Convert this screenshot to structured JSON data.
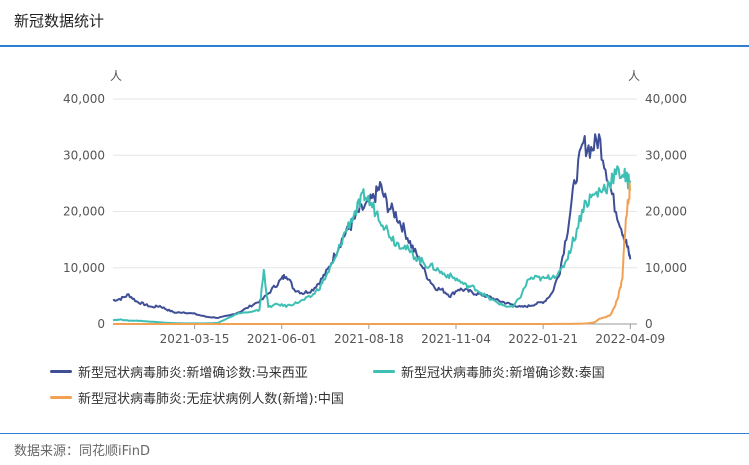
{
  "page": {
    "title": "新冠数据统计",
    "source": "数据来源：同花顺iFinD"
  },
  "chart_data": {
    "type": "line",
    "left_axis": {
      "unit": "人",
      "ticks": [
        "40,000",
        "30,000",
        "20,000",
        "10,000",
        "0"
      ],
      "ylim": [
        0,
        40000
      ]
    },
    "right_axis": {
      "unit": "人",
      "ticks": [
        "40,000",
        "30,000",
        "20,000",
        "10,000",
        "0"
      ],
      "ylim": [
        0,
        40000
      ]
    },
    "x_tick_labels": [
      "2021-03-15",
      "2021-06-01",
      "2021-08-18",
      "2021-11-04",
      "2022-01-21",
      "2022-04-09"
    ],
    "xlim": [
      "2021-01-01",
      "2022-04-15"
    ],
    "grid": true,
    "legend_position": "bottom",
    "series": [
      {
        "name": "新型冠状病毒肺炎:新增确诊数:马来西亚",
        "color": "#3f4f96",
        "points": [
          [
            "2021-01-01",
            4200
          ],
          [
            "2021-01-08",
            4500
          ],
          [
            "2021-01-15",
            5200
          ],
          [
            "2021-01-22",
            4000
          ],
          [
            "2021-01-29",
            3500
          ],
          [
            "2021-02-05",
            3000
          ],
          [
            "2021-02-12",
            3200
          ],
          [
            "2021-02-19",
            2500
          ],
          [
            "2021-02-26",
            2000
          ],
          [
            "2021-03-05",
            2100
          ],
          [
            "2021-03-15",
            1800
          ],
          [
            "2021-03-25",
            1300
          ],
          [
            "2021-04-05",
            1100
          ],
          [
            "2021-04-15",
            1500
          ],
          [
            "2021-04-25",
            2200
          ],
          [
            "2021-05-05",
            3300
          ],
          [
            "2021-05-15",
            4400
          ],
          [
            "2021-05-25",
            6500
          ],
          [
            "2021-06-01",
            8000
          ],
          [
            "2021-06-05",
            8800
          ],
          [
            "2021-06-12",
            6200
          ],
          [
            "2021-06-20",
            5500
          ],
          [
            "2021-06-28",
            6000
          ],
          [
            "2021-07-05",
            7500
          ],
          [
            "2021-07-12",
            9500
          ],
          [
            "2021-07-19",
            12500
          ],
          [
            "2021-07-26",
            15500
          ],
          [
            "2021-08-02",
            17500
          ],
          [
            "2021-08-09",
            20000
          ],
          [
            "2021-08-16",
            21000
          ],
          [
            "2021-08-23",
            22500
          ],
          [
            "2021-08-28",
            24500
          ],
          [
            "2021-09-04",
            21000
          ],
          [
            "2021-09-11",
            19500
          ],
          [
            "2021-09-18",
            17000
          ],
          [
            "2021-09-25",
            14000
          ],
          [
            "2021-10-02",
            11500
          ],
          [
            "2021-10-09",
            8500
          ],
          [
            "2021-10-16",
            6500
          ],
          [
            "2021-10-23",
            6000
          ],
          [
            "2021-10-30",
            5000
          ],
          [
            "2021-11-06",
            6200
          ],
          [
            "2021-11-13",
            6000
          ],
          [
            "2021-11-20",
            5500
          ],
          [
            "2021-11-27",
            5200
          ],
          [
            "2021-12-04",
            4800
          ],
          [
            "2021-12-11",
            4200
          ],
          [
            "2021-12-18",
            3800
          ],
          [
            "2021-12-25",
            3400
          ],
          [
            "2022-01-01",
            3000
          ],
          [
            "2022-01-08",
            3200
          ],
          [
            "2022-01-15",
            3600
          ],
          [
            "2022-01-22",
            4000
          ],
          [
            "2022-01-29",
            5500
          ],
          [
            "2022-02-05",
            9500
          ],
          [
            "2022-02-12",
            17000
          ],
          [
            "2022-02-19",
            26000
          ],
          [
            "2022-02-26",
            32000
          ],
          [
            "2022-03-05",
            31000
          ],
          [
            "2022-03-12",
            33000
          ],
          [
            "2022-03-19",
            27000
          ],
          [
            "2022-03-26",
            21000
          ],
          [
            "2022-04-02",
            16500
          ],
          [
            "2022-04-06",
            14000
          ],
          [
            "2022-04-09",
            11500
          ]
        ]
      },
      {
        "name": "新型冠状病毒肺炎:新增确诊数:泰国",
        "color": "#3ebfb4",
        "points": [
          [
            "2021-01-01",
            700
          ],
          [
            "2021-01-08",
            800
          ],
          [
            "2021-01-15",
            600
          ],
          [
            "2021-01-22",
            600
          ],
          [
            "2021-01-29",
            500
          ],
          [
            "2021-02-05",
            400
          ],
          [
            "2021-02-12",
            300
          ],
          [
            "2021-02-19",
            200
          ],
          [
            "2021-02-26",
            150
          ],
          [
            "2021-03-05",
            100
          ],
          [
            "2021-03-15",
            100
          ],
          [
            "2021-03-25",
            100
          ],
          [
            "2021-04-05",
            200
          ],
          [
            "2021-04-15",
            1200
          ],
          [
            "2021-04-25",
            2000
          ],
          [
            "2021-05-05",
            2100
          ],
          [
            "2021-05-12",
            2500
          ],
          [
            "2021-05-16",
            9500
          ],
          [
            "2021-05-20",
            3000
          ],
          [
            "2021-05-28",
            3500
          ],
          [
            "2021-06-05",
            3200
          ],
          [
            "2021-06-12",
            3600
          ],
          [
            "2021-06-20",
            4200
          ],
          [
            "2021-06-28",
            5000
          ],
          [
            "2021-07-05",
            6500
          ],
          [
            "2021-07-12",
            9000
          ],
          [
            "2021-07-19",
            11500
          ],
          [
            "2021-07-26",
            15500
          ],
          [
            "2021-08-02",
            18500
          ],
          [
            "2021-08-09",
            21000
          ],
          [
            "2021-08-14",
            23000
          ],
          [
            "2021-08-21",
            21000
          ],
          [
            "2021-08-28",
            19000
          ],
          [
            "2021-09-04",
            16500
          ],
          [
            "2021-09-11",
            14500
          ],
          [
            "2021-09-18",
            14000
          ],
          [
            "2021-09-25",
            12500
          ],
          [
            "2021-10-02",
            11500
          ],
          [
            "2021-10-09",
            10500
          ],
          [
            "2021-10-16",
            10000
          ],
          [
            "2021-10-23",
            9000
          ],
          [
            "2021-10-30",
            8500
          ],
          [
            "2021-11-06",
            7800
          ],
          [
            "2021-11-13",
            6800
          ],
          [
            "2021-11-20",
            6500
          ],
          [
            "2021-11-27",
            5500
          ],
          [
            "2021-12-04",
            4500
          ],
          [
            "2021-12-11",
            3800
          ],
          [
            "2021-12-18",
            3200
          ],
          [
            "2021-12-25",
            3000
          ],
          [
            "2022-01-01",
            5000
          ],
          [
            "2022-01-08",
            8000
          ],
          [
            "2022-01-15",
            8200
          ],
          [
            "2022-01-22",
            8000
          ],
          [
            "2022-01-29",
            8500
          ],
          [
            "2022-02-05",
            9000
          ],
          [
            "2022-02-12",
            12000
          ],
          [
            "2022-02-19",
            16000
          ],
          [
            "2022-02-26",
            21000
          ],
          [
            "2022-03-05",
            22500
          ],
          [
            "2022-03-12",
            23500
          ],
          [
            "2022-03-19",
            24500
          ],
          [
            "2022-03-26",
            26500
          ],
          [
            "2022-04-02",
            27000
          ],
          [
            "2022-04-06",
            25500
          ],
          [
            "2022-04-09",
            25500
          ]
        ]
      },
      {
        "name": "新型冠状病毒肺炎:无症状病例人数(新增):中国",
        "color": "#f0a154",
        "points": [
          [
            "2021-01-01",
            0
          ],
          [
            "2021-03-15",
            0
          ],
          [
            "2021-06-01",
            0
          ],
          [
            "2021-08-18",
            0
          ],
          [
            "2021-11-04",
            0
          ],
          [
            "2022-01-21",
            0
          ],
          [
            "2022-02-20",
            30
          ],
          [
            "2022-03-01",
            100
          ],
          [
            "2022-03-08",
            300
          ],
          [
            "2022-03-13",
            1000
          ],
          [
            "2022-03-18",
            1200
          ],
          [
            "2022-03-22",
            1600
          ],
          [
            "2022-03-26",
            3000
          ],
          [
            "2022-03-30",
            5500
          ],
          [
            "2022-04-02",
            8000
          ],
          [
            "2022-04-04",
            16000
          ],
          [
            "2022-04-06",
            20000
          ],
          [
            "2022-04-08",
            23500
          ],
          [
            "2022-04-09",
            24000
          ]
        ]
      }
    ]
  }
}
